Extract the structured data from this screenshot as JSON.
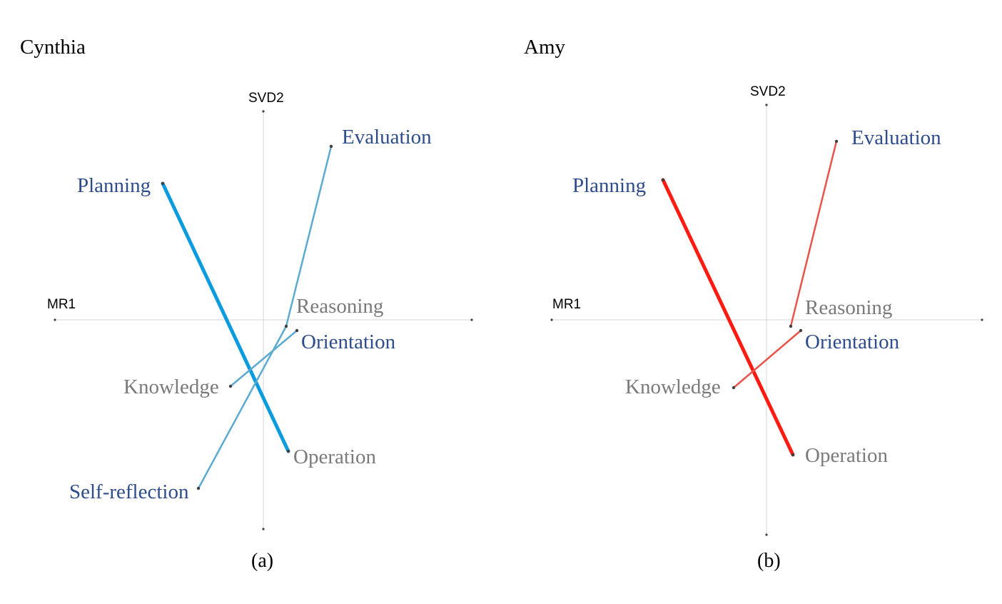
{
  "colors": {
    "blue_label": "#2E4C8B",
    "gray_label": "#7A7A7A",
    "axis": "#D4D4D4",
    "node_dot": "#404040"
  },
  "panels": [
    {
      "id": "a",
      "title": "Cynthia",
      "caption": "(a)",
      "x_axis_label": "MR1",
      "y_axis_label": "SVD2",
      "nodes": [
        {
          "id": "evaluation",
          "label": "Evaluation",
          "category": "metacognitive"
        },
        {
          "id": "planning",
          "label": "Planning",
          "category": "metacognitive"
        },
        {
          "id": "reasoning",
          "label": "Reasoning",
          "category": "cognitive"
        },
        {
          "id": "orientation",
          "label": "Orientation",
          "category": "metacognitive"
        },
        {
          "id": "knowledge",
          "label": "Knowledge",
          "category": "cognitive"
        },
        {
          "id": "operation",
          "label": "Operation",
          "category": "cognitive"
        },
        {
          "id": "self-reflection",
          "label": "Self-reflection",
          "category": "metacognitive"
        }
      ],
      "edges": [
        {
          "from": "planning",
          "to": "operation",
          "weight": "strong",
          "color": "#0B9BDF"
        },
        {
          "from": "evaluation",
          "to": "reasoning",
          "weight": "weak",
          "color": "#5AAAD2"
        },
        {
          "from": "reasoning",
          "to": "self-reflection",
          "weight": "weak",
          "color": "#5AAAD2"
        },
        {
          "from": "orientation",
          "to": "knowledge",
          "weight": "weak",
          "color": "#5AAAD2"
        }
      ]
    },
    {
      "id": "b",
      "title": "Amy",
      "caption": "(b)",
      "x_axis_label": "MR1",
      "y_axis_label": "SVD2",
      "nodes": [
        {
          "id": "evaluation",
          "label": "Evaluation",
          "category": "metacognitive"
        },
        {
          "id": "planning",
          "label": "Planning",
          "category": "metacognitive"
        },
        {
          "id": "reasoning",
          "label": "Reasoning",
          "category": "cognitive"
        },
        {
          "id": "orientation",
          "label": "Orientation",
          "category": "metacognitive"
        },
        {
          "id": "knowledge",
          "label": "Knowledge",
          "category": "cognitive"
        },
        {
          "id": "operation",
          "label": "Operation",
          "category": "cognitive"
        }
      ],
      "edges": [
        {
          "from": "planning",
          "to": "operation",
          "weight": "strong",
          "color": "#FF1A12"
        },
        {
          "from": "evaluation",
          "to": "reasoning",
          "weight": "weak",
          "color": "#E8534A"
        },
        {
          "from": "orientation",
          "to": "knowledge",
          "weight": "weak",
          "color": "#E8534A"
        }
      ]
    }
  ]
}
